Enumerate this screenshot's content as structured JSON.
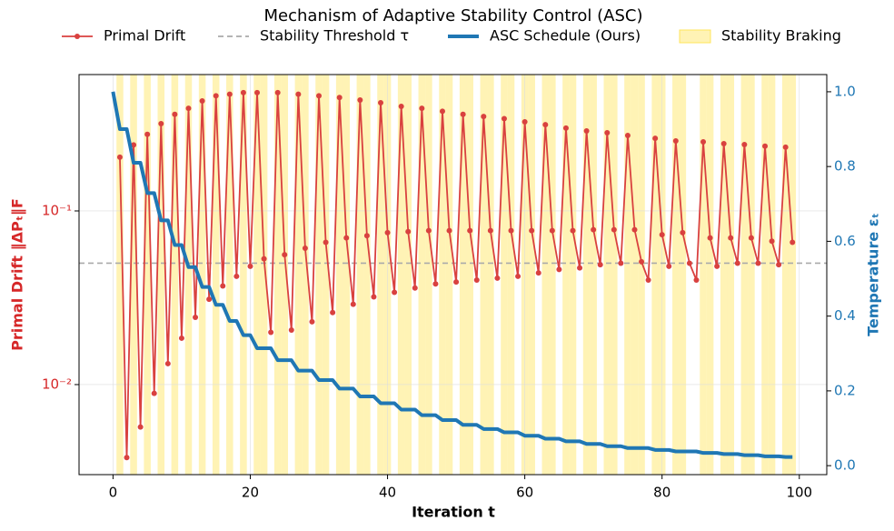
{
  "chart_data": {
    "type": "line",
    "title": "Mechanism of Adaptive Stability Control (ASC)",
    "xlabel": "Iteration t",
    "ylabel": "Primal Drift ‖ΔPₜ‖F",
    "y2label": "Temperature εₜ",
    "x": [
      0,
      1,
      2,
      3,
      4,
      5,
      6,
      7,
      8,
      9,
      10,
      11,
      12,
      13,
      14,
      15,
      16,
      17,
      18,
      19,
      20,
      21,
      22,
      23,
      24,
      25,
      26,
      27,
      28,
      29,
      30,
      31,
      32,
      33,
      34,
      35,
      36,
      37,
      38,
      39,
      40,
      41,
      42,
      43,
      44,
      45,
      46,
      47,
      48,
      49,
      50,
      51,
      52,
      53,
      54,
      55,
      56,
      57,
      58,
      59,
      60,
      61,
      62,
      63,
      64,
      65,
      66,
      67,
      68,
      69,
      70,
      71,
      72,
      73,
      74,
      75,
      76,
      77,
      78,
      79,
      80,
      81,
      82,
      83,
      84,
      85,
      86,
      87,
      88,
      89,
      90,
      91,
      92,
      93,
      94,
      95,
      96,
      97,
      98,
      99
    ],
    "series": [
      {
        "name": "Primal Drift",
        "color": "#d9413f",
        "axis": "y",
        "values": [
          null,
          0.204,
          0.0038,
          0.24,
          0.0057,
          0.276,
          0.0089,
          0.318,
          0.0132,
          0.36,
          0.0185,
          0.39,
          0.0244,
          0.43,
          0.031,
          0.46,
          0.037,
          0.47,
          0.042,
          0.48,
          0.048,
          0.48,
          0.053,
          0.02,
          0.48,
          0.056,
          0.0206,
          0.47,
          0.061,
          0.023,
          0.46,
          0.066,
          0.026,
          0.45,
          0.07,
          0.029,
          0.435,
          0.072,
          0.032,
          0.42,
          0.075,
          0.034,
          0.4,
          0.076,
          0.036,
          0.39,
          0.077,
          0.038,
          0.375,
          0.077,
          0.039,
          0.36,
          0.077,
          0.04,
          0.35,
          0.077,
          0.041,
          0.34,
          0.077,
          0.042,
          0.326,
          0.077,
          0.044,
          0.314,
          0.077,
          0.046,
          0.3,
          0.077,
          0.047,
          0.289,
          0.078,
          0.049,
          0.282,
          0.078,
          0.05,
          0.272,
          0.078,
          0.051,
          0.04,
          0.262,
          0.073,
          0.048,
          0.253,
          0.075,
          0.05,
          0.04,
          0.25,
          0.07,
          0.048,
          0.244,
          0.07,
          0.05,
          0.241,
          0.07,
          0.05,
          0.236,
          0.067,
          0.049,
          0.233,
          0.066
        ]
      },
      {
        "name": "ASC Schedule (Ours)",
        "color": "#1f77b4",
        "axis": "y2",
        "values": [
          1.0,
          0.9,
          0.9,
          0.81,
          0.81,
          0.729,
          0.729,
          0.656,
          0.656,
          0.59,
          0.59,
          0.531,
          0.531,
          0.478,
          0.478,
          0.43,
          0.43,
          0.387,
          0.387,
          0.349,
          0.349,
          0.314,
          0.314,
          0.314,
          0.282,
          0.282,
          0.282,
          0.254,
          0.254,
          0.254,
          0.229,
          0.229,
          0.229,
          0.206,
          0.206,
          0.206,
          0.185,
          0.185,
          0.185,
          0.167,
          0.167,
          0.167,
          0.15,
          0.15,
          0.15,
          0.135,
          0.135,
          0.135,
          0.122,
          0.122,
          0.122,
          0.109,
          0.109,
          0.109,
          0.098,
          0.098,
          0.098,
          0.089,
          0.089,
          0.089,
          0.08,
          0.08,
          0.08,
          0.072,
          0.072,
          0.072,
          0.065,
          0.065,
          0.065,
          0.058,
          0.058,
          0.058,
          0.052,
          0.052,
          0.052,
          0.047,
          0.047,
          0.047,
          0.047,
          0.042,
          0.042,
          0.042,
          0.038,
          0.038,
          0.038,
          0.038,
          0.034,
          0.034,
          0.034,
          0.031,
          0.031,
          0.031,
          0.028,
          0.028,
          0.028,
          0.025,
          0.025,
          0.025,
          0.023,
          0.023
        ]
      }
    ],
    "threshold": {
      "name": "Stability Threshold τ",
      "value": 0.05,
      "color": "#aaaaaa"
    },
    "braking": {
      "name": "Stability Braking",
      "color": "#ffe45c",
      "iterations": [
        1,
        3,
        5,
        7,
        9,
        11,
        13,
        15,
        17,
        19,
        21,
        22,
        24,
        25,
        27,
        28,
        30,
        31,
        33,
        34,
        36,
        37,
        39,
        40,
        42,
        43,
        45,
        46,
        48,
        49,
        51,
        52,
        54,
        55,
        57,
        58,
        60,
        61,
        63,
        64,
        66,
        67,
        69,
        70,
        72,
        73,
        75,
        76,
        77,
        79,
        80,
        82,
        83,
        86,
        87,
        89,
        90,
        92,
        93,
        95,
        96,
        98,
        99
      ]
    },
    "xlim": [
      -4.95,
      104
    ],
    "xticks": [
      0,
      20,
      40,
      60,
      80,
      100
    ],
    "ylim": [
      0.00303,
      0.61
    ],
    "ylog": true,
    "yticks": [
      {
        "value": 0.01,
        "label": "10⁻²"
      },
      {
        "value": 0.1,
        "label": "10⁻¹"
      }
    ],
    "y2lim": [
      -0.024,
      1.046
    ],
    "y2ticks": [
      {
        "value": 0,
        "label": "0.0"
      },
      0.2,
      0.4,
      0.6,
      0.8,
      {
        "value": 1,
        "label": "1.0"
      }
    ],
    "grid": true,
    "legend": "upper center"
  }
}
